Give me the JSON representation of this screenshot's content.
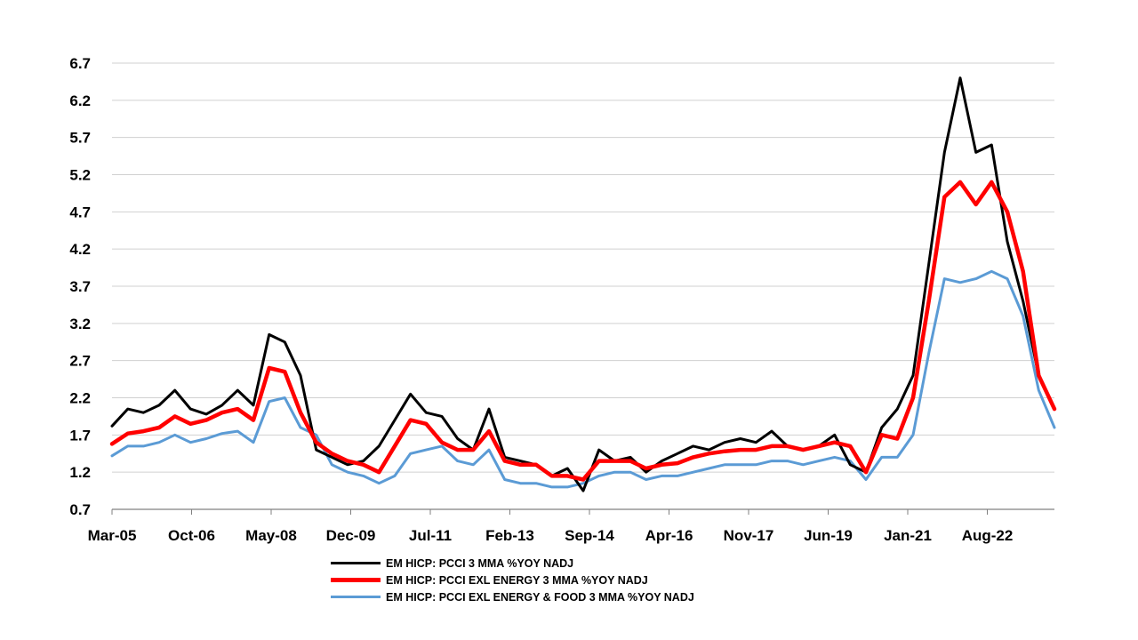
{
  "chart_data": {
    "type": "line",
    "title": "",
    "xlabel": "",
    "ylabel": "",
    "ylim": [
      0.7,
      6.7
    ],
    "yticks": [
      "0.7",
      "1.2",
      "1.7",
      "2.2",
      "2.7",
      "3.2",
      "3.7",
      "4.2",
      "4.7",
      "5.2",
      "5.7",
      "6.2",
      "6.7"
    ],
    "xticks": [
      "Mar-05",
      "Oct-06",
      "May-08",
      "Dec-09",
      "Jul-11",
      "Feb-13",
      "Sep-14",
      "Apr-16",
      "Nov-17",
      "Jun-19",
      "Jan-21",
      "Aug-22"
    ],
    "grid": true,
    "legend_position": "bottom",
    "x_step_months": 3,
    "x_start": "Mar-05",
    "series": [
      {
        "name": "EM HICP: PCCI 3 MMA %YOY NADJ",
        "color": "#000000",
        "values": [
          1.82,
          2.05,
          2.0,
          2.1,
          2.3,
          2.05,
          1.98,
          2.1,
          2.3,
          2.1,
          3.05,
          2.95,
          2.5,
          1.5,
          1.4,
          1.3,
          1.35,
          1.55,
          1.9,
          2.25,
          2.0,
          1.95,
          1.65,
          1.5,
          2.05,
          1.4,
          1.35,
          1.3,
          1.15,
          1.25,
          0.95,
          1.5,
          1.35,
          1.4,
          1.2,
          1.35,
          1.45,
          1.55,
          1.5,
          1.6,
          1.65,
          1.6,
          1.75,
          1.55,
          1.5,
          1.55,
          1.7,
          1.3,
          1.2,
          1.8,
          2.05,
          2.5,
          4.0,
          5.5,
          6.5,
          5.5,
          5.6,
          4.3,
          3.5,
          2.5,
          2.05
        ]
      },
      {
        "name": "EM HICP: PCCI EXL ENERGY 3 MMA %YOY NADJ",
        "color": "#ff0000",
        "values": [
          1.58,
          1.72,
          1.75,
          1.8,
          1.95,
          1.85,
          1.9,
          2.0,
          2.05,
          1.9,
          2.6,
          2.55,
          2.0,
          1.6,
          1.45,
          1.35,
          1.3,
          1.2,
          1.55,
          1.9,
          1.85,
          1.6,
          1.5,
          1.5,
          1.75,
          1.35,
          1.3,
          1.3,
          1.15,
          1.15,
          1.1,
          1.35,
          1.35,
          1.35,
          1.25,
          1.3,
          1.32,
          1.4,
          1.45,
          1.48,
          1.5,
          1.5,
          1.55,
          1.55,
          1.5,
          1.55,
          1.6,
          1.55,
          1.2,
          1.7,
          1.65,
          2.2,
          3.5,
          4.9,
          5.1,
          4.8,
          5.1,
          4.7,
          3.9,
          2.5,
          2.05
        ]
      },
      {
        "name": "EM HICP: PCCI EXL ENERGY & FOOD 3 MMA %YOY NADJ",
        "color": "#5b9bd5",
        "values": [
          1.42,
          1.55,
          1.55,
          1.6,
          1.7,
          1.6,
          1.65,
          1.72,
          1.75,
          1.6,
          2.15,
          2.2,
          1.8,
          1.7,
          1.3,
          1.2,
          1.15,
          1.05,
          1.15,
          1.45,
          1.5,
          1.55,
          1.35,
          1.3,
          1.5,
          1.1,
          1.05,
          1.05,
          1.0,
          1.0,
          1.05,
          1.15,
          1.2,
          1.2,
          1.1,
          1.15,
          1.15,
          1.2,
          1.25,
          1.3,
          1.3,
          1.3,
          1.35,
          1.35,
          1.3,
          1.35,
          1.4,
          1.35,
          1.1,
          1.4,
          1.4,
          1.7,
          2.8,
          3.8,
          3.75,
          3.8,
          3.9,
          3.8,
          3.3,
          2.3,
          1.8
        ]
      }
    ]
  }
}
